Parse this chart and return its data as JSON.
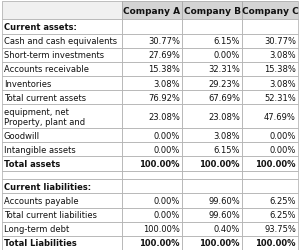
{
  "columns": [
    "",
    "Company A",
    "Company B",
    "Company C"
  ],
  "rows": [
    {
      "label": "Current assets:",
      "values": [
        "",
        "",
        ""
      ],
      "bold": true,
      "section_header": true
    },
    {
      "label": "Cash and cash equivalents",
      "values": [
        "30.77%",
        "6.15%",
        "30.77%"
      ],
      "bold": false,
      "section_header": false
    },
    {
      "label": "Short-term investments",
      "values": [
        "27.69%",
        "0.00%",
        "3.08%"
      ],
      "bold": false,
      "section_header": false
    },
    {
      "label": "Accounts receivable",
      "values": [
        "15.38%",
        "32.31%",
        "15.38%"
      ],
      "bold": false,
      "section_header": false
    },
    {
      "label": "Inventories",
      "values": [
        "3.08%",
        "29.23%",
        "3.08%"
      ],
      "bold": false,
      "section_header": false
    },
    {
      "label": "Total current assets",
      "values": [
        "76.92%",
        "67.69%",
        "52.31%"
      ],
      "bold": false,
      "section_header": false
    },
    {
      "label": "Property, plant and\nequipment, net",
      "values": [
        "23.08%",
        "23.08%",
        "47.69%"
      ],
      "bold": false,
      "section_header": false,
      "multiline": true
    },
    {
      "label": "Goodwill",
      "values": [
        "0.00%",
        "3.08%",
        "0.00%"
      ],
      "bold": false,
      "section_header": false
    },
    {
      "label": "Intangible assets",
      "values": [
        "0.00%",
        "6.15%",
        "0.00%"
      ],
      "bold": false,
      "section_header": false
    },
    {
      "label": "Total assets",
      "values": [
        "100.00%",
        "100.00%",
        "100.00%"
      ],
      "bold": true,
      "section_header": false
    },
    {
      "label": "",
      "values": [
        "",
        "",
        ""
      ],
      "bold": false,
      "section_header": false
    },
    {
      "label": "Current liabilities:",
      "values": [
        "",
        "",
        ""
      ],
      "bold": true,
      "section_header": true
    },
    {
      "label": "Accounts payable",
      "values": [
        "0.00%",
        "99.60%",
        "6.25%"
      ],
      "bold": false,
      "section_header": false
    },
    {
      "label": "Total current liabilities",
      "values": [
        "0.00%",
        "99.60%",
        "6.25%"
      ],
      "bold": false,
      "section_header": false
    },
    {
      "label": "Long-term debt",
      "values": [
        "100.00%",
        "0.40%",
        "93.75%"
      ],
      "bold": false,
      "section_header": false
    },
    {
      "label": "Total Liabilities",
      "values": [
        "100.00%",
        "100.00%",
        "100.00%"
      ],
      "bold": true,
      "section_header": false
    }
  ],
  "header_bg": "#d4d4d4",
  "border_color": "#aaaaaa",
  "text_color": "#111111",
  "font_size": 6.0,
  "header_font_size": 6.5,
  "figsize": [
    3.0,
    2.51
  ],
  "dpi": 100
}
